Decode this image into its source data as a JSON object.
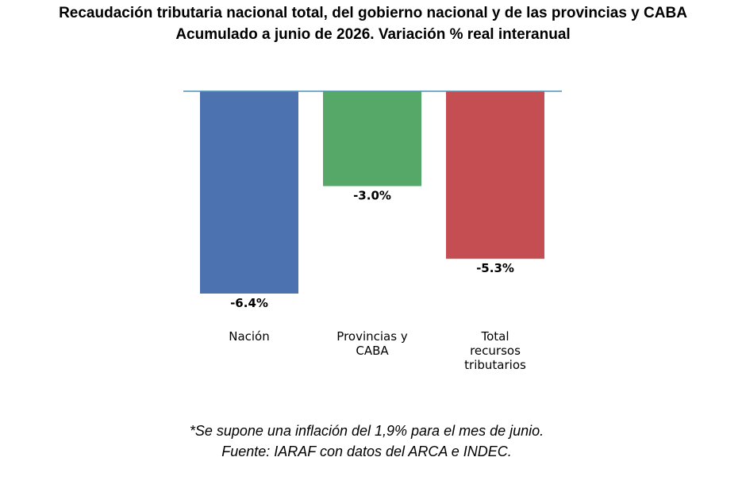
{
  "chart_data": {
    "type": "bar",
    "title": "Recaudación tributaria nacional total, del gobierno nacional y de las provincias y CABA",
    "subtitle": "Acumulado a junio de 2026. Variación % real interanual",
    "categories": [
      [
        "Nación"
      ],
      [
        "Provincias y",
        "CABA"
      ],
      [
        "Total",
        "recursos",
        "tributarios"
      ]
    ],
    "values": [
      -6.4,
      -3.0,
      -5.3
    ],
    "data_labels": [
      "-6.4%",
      "-3.0%",
      "-5.3%"
    ],
    "colors": [
      "#4c72b0",
      "#55a868",
      "#c44e52"
    ],
    "axis_line_color": "#4a90b8",
    "xlabel": "",
    "ylabel": "",
    "ylim": [
      -6.4,
      0
    ],
    "grid": false,
    "legend": "none"
  },
  "notes": {
    "line1": "*Se supone una inflación del 1,9% para el mes de junio.",
    "line2": "Fuente: IARAF con datos del ARCA e INDEC."
  }
}
